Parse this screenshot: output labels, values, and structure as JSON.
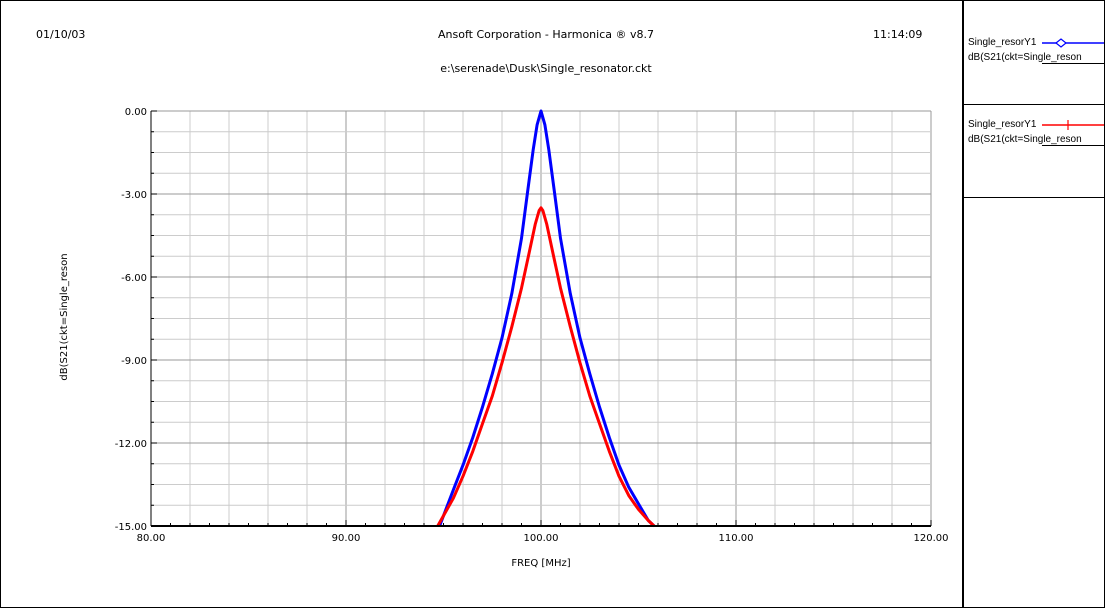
{
  "header": {
    "date": "01/10/03",
    "title": "Ansoft Corporation - Harmonica ® v8.7",
    "time": "11:14:09",
    "file": "e:\\serenade\\Dusk\\Single_resonator.ckt"
  },
  "legend": {
    "entries": [
      {
        "name": "Single_resorY1",
        "expr": "dB(S21(ckt=Single_reson",
        "color": "#0000ff",
        "marker": "diamond-icon"
      },
      {
        "name": "Single_resorY1",
        "expr": "dB(S21(ckt=Single_reson",
        "color": "#ff0000",
        "marker": "cross-icon"
      }
    ]
  },
  "chart_data": {
    "type": "line",
    "xlabel": "FREQ [MHz]",
    "ylabel": "dB(S21(ckt=Single_reson",
    "xlim": [
      80,
      120
    ],
    "ylim": [
      -15,
      0
    ],
    "x_ticks": [
      "80.00",
      "90.00",
      "100.00",
      "110.00",
      "120.00"
    ],
    "y_ticks": [
      "0.00",
      "-3.00",
      "-6.00",
      "-9.00",
      "-12.00",
      "-15.00"
    ],
    "grid": true,
    "series": [
      {
        "color": "#0000ff",
        "x": [
          94.8,
          95.5,
          96.0,
          96.5,
          97.0,
          97.5,
          98.0,
          98.5,
          99.0,
          99.3,
          99.6,
          99.8,
          100.0,
          100.2,
          100.4,
          100.7,
          101.0,
          101.5,
          102.0,
          102.5,
          103.0,
          103.5,
          104.0,
          104.5,
          105.0,
          105.5,
          105.8
        ],
        "y": [
          -15.0,
          -13.7,
          -12.8,
          -11.8,
          -10.7,
          -9.5,
          -8.2,
          -6.6,
          -4.6,
          -3.0,
          -1.4,
          -0.5,
          0.0,
          -0.5,
          -1.4,
          -3.0,
          -4.6,
          -6.6,
          -8.2,
          -9.5,
          -10.7,
          -11.8,
          -12.8,
          -13.6,
          -14.2,
          -14.8,
          -15.0
        ]
      },
      {
        "color": "#ff0000",
        "x": [
          94.7,
          95.5,
          96.0,
          96.5,
          97.0,
          97.5,
          98.0,
          98.5,
          99.0,
          99.4,
          99.7,
          99.9,
          100.0,
          100.1,
          100.3,
          100.6,
          101.0,
          101.5,
          102.0,
          102.5,
          103.0,
          103.5,
          104.0,
          104.5,
          105.0,
          105.5,
          105.8
        ],
        "y": [
          -15.0,
          -14.0,
          -13.2,
          -12.3,
          -11.3,
          -10.3,
          -9.1,
          -7.8,
          -6.4,
          -5.1,
          -4.1,
          -3.6,
          -3.5,
          -3.6,
          -4.1,
          -5.1,
          -6.4,
          -7.8,
          -9.1,
          -10.3,
          -11.3,
          -12.3,
          -13.2,
          -13.9,
          -14.4,
          -14.8,
          -15.0
        ]
      }
    ]
  }
}
